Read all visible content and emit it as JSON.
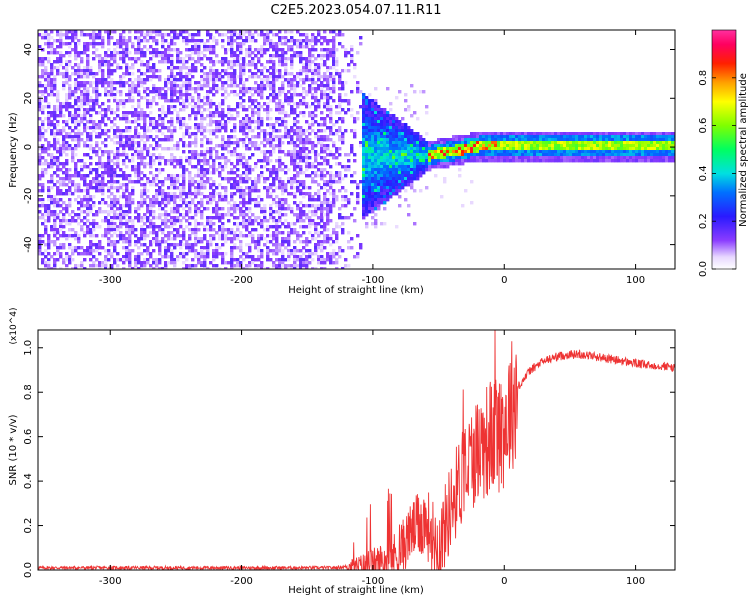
{
  "title": "C2E5.2023.054.07.11.R11",
  "chart_data": [
    {
      "type": "heatmap",
      "xlabel": "Height of straight line (km)",
      "ylabel": "Frequency (Hz)",
      "xlim": [
        -355,
        130
      ],
      "ylim": [
        -50,
        48
      ],
      "x_ticks": [
        -300,
        -200,
        -100,
        0,
        100
      ],
      "y_ticks": [
        -40,
        -20,
        0,
        20,
        40
      ],
      "colorbar": {
        "label": "Normalized spectral amplitude",
        "range": [
          0,
          1
        ],
        "ticks": [
          "0.0",
          "0.2",
          "0.4",
          "0.6",
          "0.8"
        ],
        "colormap": "rainbow (violet-blue-cyan-green-yellow-red-magenta)"
      },
      "features": {
        "noise_region_x": [
          -355,
          -110
        ],
        "noise_amplitude": 0.1,
        "converging_band_x": [
          -130,
          -60
        ],
        "narrow_band_x": [
          -60,
          130
        ],
        "narrow_band_center_hz": [
          {
            "x": -60,
            "f": -3
          },
          {
            "x": -40,
            "f": -1
          },
          {
            "x": -20,
            "f": 1
          },
          {
            "x": 0,
            "f": 1
          },
          {
            "x": 130,
            "f": 1
          }
        ],
        "peak_amplitude": 0.9
      }
    },
    {
      "type": "line",
      "xlabel": "Height of straight line (km)",
      "ylabel": "SNR (10 * v/v)",
      "y_scale_label": "(x10^4)",
      "xlim": [
        -355,
        130
      ],
      "ylim": [
        0,
        1.08
      ],
      "x_ticks": [
        -300,
        -200,
        -100,
        0,
        100
      ],
      "y_ticks": [
        "0.0",
        "0.2",
        "0.4",
        "0.6",
        "0.8",
        "1.0"
      ],
      "color": "#ee3333",
      "series": [
        {
          "x": [
            -355,
            -300,
            -200,
            -130,
            -110,
            -90,
            -80,
            -70,
            -60,
            -50,
            -40,
            -30,
            -20,
            -10,
            0,
            10,
            20,
            30,
            40,
            50,
            60,
            70,
            80,
            90,
            100,
            110,
            120,
            130
          ],
          "y": [
            0.01,
            0.01,
            0.01,
            0.01,
            0.02,
            0.04,
            0.08,
            0.18,
            0.22,
            0.1,
            0.3,
            0.45,
            0.55,
            0.6,
            0.65,
            0.82,
            0.9,
            0.94,
            0.96,
            0.97,
            0.97,
            0.96,
            0.95,
            0.94,
            0.93,
            0.92,
            0.92,
            0.91
          ]
        }
      ]
    }
  ]
}
